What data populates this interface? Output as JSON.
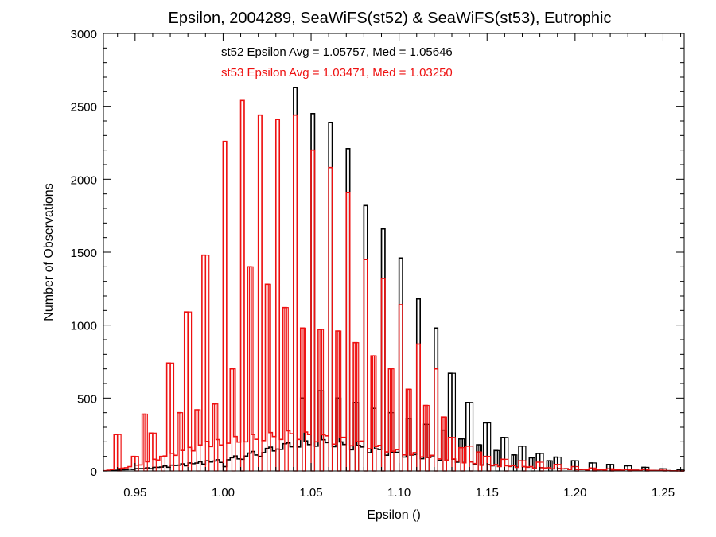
{
  "chart_data": {
    "type": "histogram",
    "title": "Epsilon, 2004289, SeaWiFS(st52) & SeaWiFS(st53), Eutrophic",
    "xlabel": "Epsilon ()",
    "ylabel": "Number of Observations",
    "xlim": [
      0.932,
      1.262
    ],
    "ylim": [
      0,
      3000
    ],
    "x_ticks": [
      0.95,
      1.0,
      1.05,
      1.1,
      1.15,
      1.2,
      1.25
    ],
    "x_tick_labels": [
      "0.95",
      "1.00",
      "1.05",
      "1.10",
      "1.15",
      "1.20",
      "1.25"
    ],
    "y_ticks": [
      0,
      500,
      1000,
      1500,
      2000,
      2500,
      3000
    ],
    "y_tick_labels": [
      "0",
      "500",
      "1000",
      "1500",
      "2000",
      "2500",
      "3000"
    ],
    "grid": false,
    "annotations": [
      {
        "text": "st52 Epsilon Avg = 1.05757, Med = 1.05646",
        "color": "#000000"
      },
      {
        "text": "st53 Epsilon Avg = 1.03471, Med = 1.03250",
        "color": "#ee1111"
      }
    ],
    "series": [
      {
        "name": "st52",
        "color": "#000000",
        "bin_width": 0.002,
        "spikes": [
          [
            1.0,
            30
          ],
          [
            1.01,
            80
          ],
          [
            1.02,
            100
          ],
          [
            1.03,
            150
          ],
          [
            1.04,
            2630
          ],
          [
            1.045,
            500
          ],
          [
            1.05,
            2450
          ],
          [
            1.055,
            550
          ],
          [
            1.06,
            2390
          ],
          [
            1.065,
            500
          ],
          [
            1.07,
            2210
          ],
          [
            1.075,
            470
          ],
          [
            1.08,
            1820
          ],
          [
            1.085,
            430
          ],
          [
            1.09,
            1660
          ],
          [
            1.095,
            400
          ],
          [
            1.1,
            1460
          ],
          [
            1.105,
            360
          ],
          [
            1.11,
            1180
          ],
          [
            1.115,
            320
          ],
          [
            1.12,
            980
          ],
          [
            1.125,
            280
          ],
          [
            1.13,
            670
          ],
          [
            1.135,
            220
          ],
          [
            1.14,
            470
          ],
          [
            1.145,
            180
          ],
          [
            1.15,
            330
          ],
          [
            1.155,
            140
          ],
          [
            1.16,
            230
          ],
          [
            1.165,
            110
          ],
          [
            1.17,
            170
          ],
          [
            1.175,
            90
          ],
          [
            1.18,
            120
          ],
          [
            1.185,
            70
          ],
          [
            1.19,
            95
          ],
          [
            1.2,
            70
          ],
          [
            1.21,
            55
          ],
          [
            1.22,
            45
          ],
          [
            1.23,
            35
          ],
          [
            1.24,
            25
          ],
          [
            1.25,
            15
          ],
          [
            1.26,
            10
          ]
        ],
        "background": [
          [
            0.932,
            0
          ],
          [
            0.96,
            20
          ],
          [
            1.0,
            70
          ],
          [
            1.04,
            180
          ],
          [
            1.06,
            200
          ],
          [
            1.1,
            120
          ],
          [
            1.15,
            40
          ],
          [
            1.2,
            10
          ],
          [
            1.262,
            0
          ]
        ]
      },
      {
        "name": "st53",
        "color": "#ee1111",
        "bin_width": 0.002,
        "spikes": [
          [
            0.94,
            250
          ],
          [
            0.95,
            100
          ],
          [
            0.955,
            390
          ],
          [
            0.96,
            260
          ],
          [
            0.965,
            100
          ],
          [
            0.97,
            740
          ],
          [
            0.975,
            400
          ],
          [
            0.98,
            1090
          ],
          [
            0.985,
            420
          ],
          [
            0.99,
            1480
          ],
          [
            0.995,
            460
          ],
          [
            1.0,
            2260
          ],
          [
            1.005,
            700
          ],
          [
            1.01,
            2540
          ],
          [
            1.015,
            1400
          ],
          [
            1.02,
            2440
          ],
          [
            1.025,
            1280
          ],
          [
            1.03,
            2410
          ],
          [
            1.035,
            1120
          ],
          [
            1.04,
            2440
          ],
          [
            1.045,
            980
          ],
          [
            1.05,
            2200
          ],
          [
            1.055,
            970
          ],
          [
            1.06,
            2080
          ],
          [
            1.065,
            960
          ],
          [
            1.07,
            1910
          ],
          [
            1.075,
            880
          ],
          [
            1.08,
            1450
          ],
          [
            1.085,
            790
          ],
          [
            1.09,
            1320
          ],
          [
            1.095,
            700
          ],
          [
            1.1,
            1140
          ],
          [
            1.105,
            560
          ],
          [
            1.11,
            870
          ],
          [
            1.115,
            450
          ],
          [
            1.12,
            700
          ],
          [
            1.125,
            370
          ],
          [
            1.13,
            230
          ],
          [
            1.135,
            160
          ],
          [
            1.14,
            170
          ],
          [
            1.145,
            130
          ],
          [
            1.15,
            100
          ],
          [
            1.16,
            80
          ],
          [
            1.17,
            70
          ],
          [
            1.18,
            60
          ],
          [
            1.19,
            45
          ],
          [
            1.2,
            30
          ],
          [
            1.21,
            20
          ],
          [
            1.22,
            15
          ],
          [
            1.23,
            10
          ],
          [
            1.24,
            10
          ],
          [
            1.25,
            5
          ]
        ],
        "background": [
          [
            0.932,
            0
          ],
          [
            0.95,
            30
          ],
          [
            1.0,
            200
          ],
          [
            1.04,
            260
          ],
          [
            1.07,
            220
          ],
          [
            1.1,
            130
          ],
          [
            1.15,
            40
          ],
          [
            1.2,
            10
          ],
          [
            1.262,
            0
          ]
        ]
      }
    ]
  }
}
